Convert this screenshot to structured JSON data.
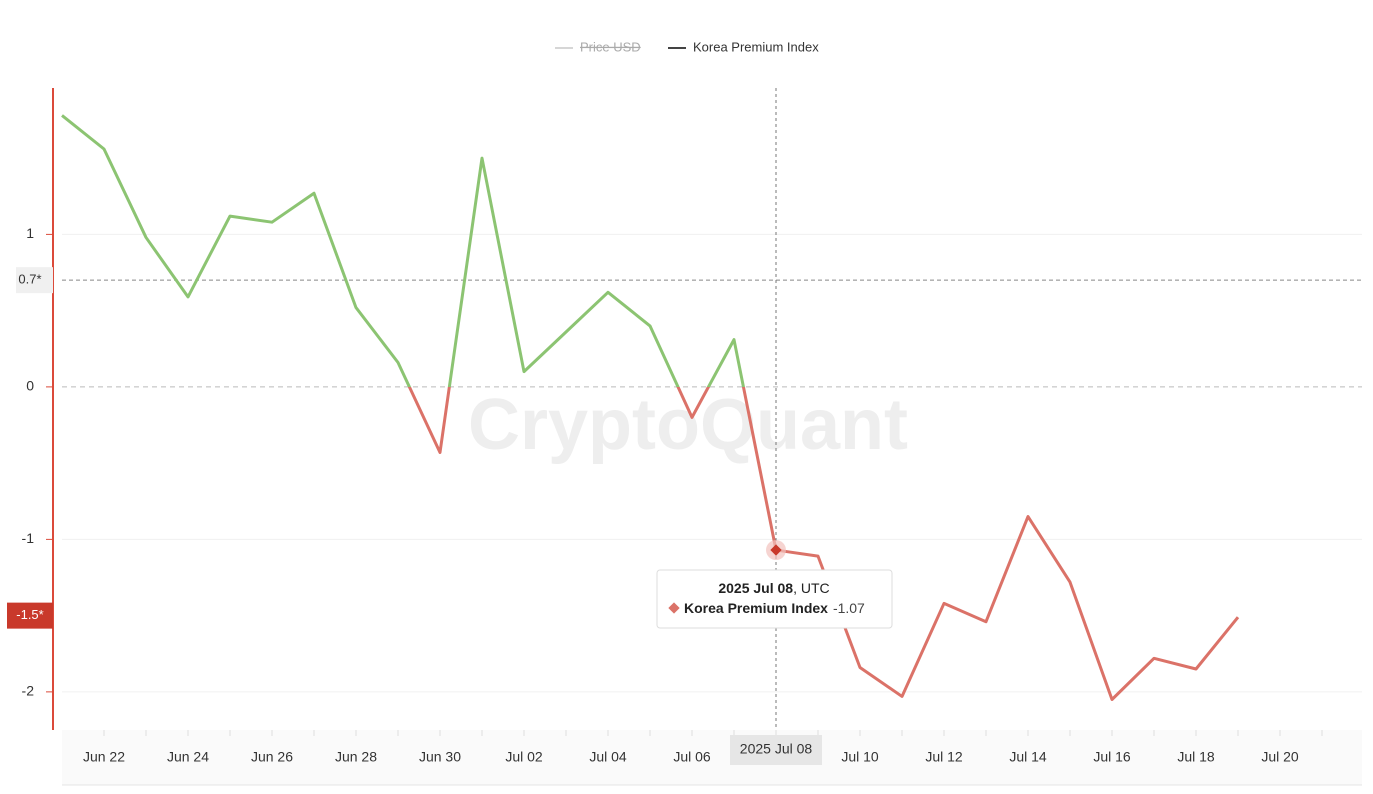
{
  "chart_data": {
    "type": "line",
    "watermark": "CryptoQuant",
    "hidden_series": [
      {
        "name": "Price USD",
        "color": "#d6d6d6"
      }
    ],
    "categories": [
      null,
      "Jun 22",
      null,
      "Jun 24",
      null,
      "Jun 26",
      null,
      "Jun 28",
      null,
      "Jun 30",
      null,
      "Jul 02",
      null,
      "Jul 04",
      null,
      "Jul 06",
      null,
      null,
      null,
      "Jul 10",
      null,
      "Jul 12",
      null,
      "Jul 14",
      null,
      "Jul 16",
      null,
      "Jul 18",
      null,
      "Jul 20"
    ],
    "series": [
      {
        "name": "Korea Premium Index",
        "color": "#444444",
        "positive_color": "#8cc472",
        "negative_color": "#db7268",
        "values": [
          1.78,
          1.56,
          0.98,
          0.59,
          1.12,
          1.08,
          1.27,
          0.52,
          0.16,
          -0.43,
          1.5,
          0.1,
          0.36,
          0.62,
          0.4,
          -0.2,
          0.31,
          -1.07,
          -1.11,
          -1.84,
          -2.03,
          -1.42,
          -1.54,
          -0.85,
          -1.28,
          -2.05,
          -1.78,
          -1.85,
          -1.51,
          null
        ]
      }
    ],
    "ylim": [
      -2.25,
      1.96
    ],
    "yticks": [
      -2,
      -1,
      0,
      1
    ],
    "markers": [
      {
        "value": 0.7,
        "label": "0.7*"
      },
      {
        "value": -1.5,
        "label": "-1.5*"
      }
    ],
    "grid": true,
    "tooltip": {
      "index": 17,
      "date": "2025 Jul 08",
      "timezone": ", UTC",
      "value": -1.07
    }
  }
}
